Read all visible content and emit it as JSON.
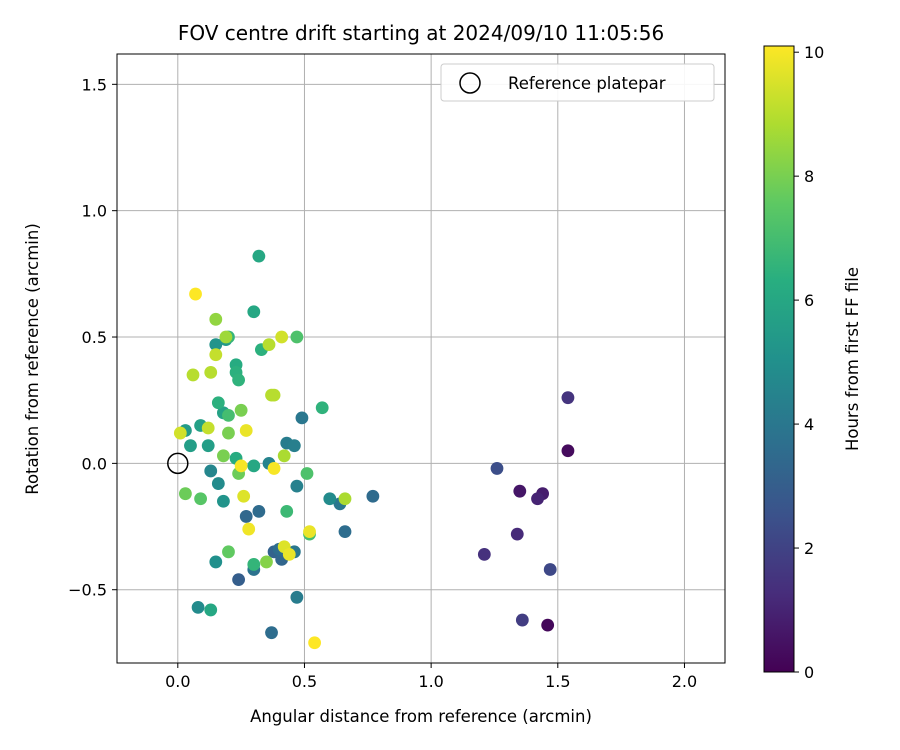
{
  "chart_data": {
    "type": "scatter",
    "title": "FOV centre drift starting at 2024/09/10 11:05:56",
    "xlabel": "Angular distance from reference (arcmin)",
    "ylabel": "Rotation from reference (arcmin)",
    "xlim": [
      -0.24,
      2.16
    ],
    "ylim": [
      -0.79,
      1.62
    ],
    "xticks": [
      0.0,
      0.5,
      1.0,
      1.5,
      2.0
    ],
    "xtick_labels": [
      "0.0",
      "0.5",
      "1.0",
      "1.5",
      "2.0"
    ],
    "yticks": [
      -0.5,
      0.0,
      0.5,
      1.0,
      1.5
    ],
    "ytick_labels": [
      "−0.5",
      "0.0",
      "0.5",
      "1.0",
      "1.5"
    ],
    "grid": true,
    "legend": {
      "position": "top-right",
      "entries": [
        "Reference platepar"
      ]
    },
    "reference_point": {
      "x": 0.0,
      "y": 0.0,
      "label": "Reference platepar"
    },
    "colorbar": {
      "label": "Hours from first FF file",
      "colormap": "viridis",
      "range": [
        0,
        10.1
      ],
      "ticks": [
        0,
        2,
        4,
        6,
        8,
        10
      ],
      "tick_labels": [
        "0",
        "2",
        "4",
        "6",
        "8",
        "10"
      ]
    },
    "points": [
      {
        "x": 1.46,
        "y": -0.64,
        "c": 0.2
      },
      {
        "x": 1.54,
        "y": 0.05,
        "c": 0.3
      },
      {
        "x": 1.35,
        "y": -0.11,
        "c": 0.6
      },
      {
        "x": 1.44,
        "y": -0.12,
        "c": 0.8
      },
      {
        "x": 1.42,
        "y": -0.14,
        "c": 1.0
      },
      {
        "x": 1.34,
        "y": -0.28,
        "c": 1.2
      },
      {
        "x": 1.21,
        "y": -0.36,
        "c": 1.4
      },
      {
        "x": 1.54,
        "y": 0.26,
        "c": 1.5
      },
      {
        "x": 1.36,
        "y": -0.62,
        "c": 1.8
      },
      {
        "x": 1.47,
        "y": -0.42,
        "c": 2.2
      },
      {
        "x": 1.26,
        "y": -0.02,
        "c": 2.4
      },
      {
        "x": 0.24,
        "y": -0.46,
        "c": 3.0
      },
      {
        "x": 0.27,
        "y": -0.21,
        "c": 3.4
      },
      {
        "x": 0.32,
        "y": -0.19,
        "c": 3.5
      },
      {
        "x": 0.37,
        "y": -0.67,
        "c": 3.6
      },
      {
        "x": 0.38,
        "y": -0.35,
        "c": 3.2
      },
      {
        "x": 0.41,
        "y": -0.38,
        "c": 3.3
      },
      {
        "x": 0.4,
        "y": -0.34,
        "c": 3.6
      },
      {
        "x": 0.3,
        "y": -0.42,
        "c": 3.8
      },
      {
        "x": 0.46,
        "y": -0.35,
        "c": 4.0
      },
      {
        "x": 0.47,
        "y": -0.53,
        "c": 4.2
      },
      {
        "x": 0.66,
        "y": -0.27,
        "c": 3.6
      },
      {
        "x": 0.77,
        "y": -0.13,
        "c": 3.5
      },
      {
        "x": 0.64,
        "y": -0.16,
        "c": 4.0
      },
      {
        "x": 0.49,
        "y": 0.18,
        "c": 4.0
      },
      {
        "x": 0.43,
        "y": 0.08,
        "c": 4.2
      },
      {
        "x": 0.46,
        "y": 0.07,
        "c": 4.3
      },
      {
        "x": 0.47,
        "y": -0.09,
        "c": 4.4
      },
      {
        "x": 0.36,
        "y": 0.0,
        "c": 4.5
      },
      {
        "x": 0.6,
        "y": -0.14,
        "c": 4.8
      },
      {
        "x": 0.08,
        "y": -0.57,
        "c": 4.8
      },
      {
        "x": 0.13,
        "y": -0.03,
        "c": 4.6
      },
      {
        "x": 0.16,
        "y": -0.08,
        "c": 4.8
      },
      {
        "x": 0.15,
        "y": -0.39,
        "c": 5.0
      },
      {
        "x": 0.18,
        "y": -0.15,
        "c": 5.2
      },
      {
        "x": 0.15,
        "y": 0.47,
        "c": 5.2
      },
      {
        "x": 0.19,
        "y": 0.49,
        "c": 5.4
      },
      {
        "x": 0.03,
        "y": 0.13,
        "c": 5.5
      },
      {
        "x": 0.05,
        "y": 0.07,
        "c": 5.6
      },
      {
        "x": 0.12,
        "y": 0.07,
        "c": 5.6
      },
      {
        "x": 0.09,
        "y": 0.15,
        "c": 5.7
      },
      {
        "x": 0.18,
        "y": 0.2,
        "c": 5.8
      },
      {
        "x": 0.13,
        "y": -0.58,
        "c": 6.0
      },
      {
        "x": 0.3,
        "y": 0.6,
        "c": 6.0
      },
      {
        "x": 0.32,
        "y": 0.82,
        "c": 6.0
      },
      {
        "x": 0.3,
        "y": -0.01,
        "c": 6.0
      },
      {
        "x": 0.23,
        "y": 0.39,
        "c": 6.2
      },
      {
        "x": 0.23,
        "y": 0.36,
        "c": 6.4
      },
      {
        "x": 0.24,
        "y": 0.33,
        "c": 6.5
      },
      {
        "x": 0.23,
        "y": 0.02,
        "c": 6.2
      },
      {
        "x": 0.16,
        "y": 0.24,
        "c": 6.4
      },
      {
        "x": 0.33,
        "y": 0.45,
        "c": 6.4
      },
      {
        "x": 0.3,
        "y": -0.4,
        "c": 6.6
      },
      {
        "x": 0.2,
        "y": 0.5,
        "c": 6.6
      },
      {
        "x": 0.57,
        "y": 0.22,
        "c": 6.5
      },
      {
        "x": 0.43,
        "y": -0.19,
        "c": 6.8
      },
      {
        "x": 0.52,
        "y": -0.28,
        "c": 7.0
      },
      {
        "x": 0.51,
        "y": -0.04,
        "c": 7.2
      },
      {
        "x": 0.47,
        "y": 0.5,
        "c": 7.2
      },
      {
        "x": 0.2,
        "y": 0.19,
        "c": 7.0
      },
      {
        "x": 0.09,
        "y": -0.14,
        "c": 7.4
      },
      {
        "x": 0.2,
        "y": -0.35,
        "c": 7.6
      },
      {
        "x": 0.24,
        "y": -0.04,
        "c": 7.8
      },
      {
        "x": 0.2,
        "y": 0.12,
        "c": 8.0
      },
      {
        "x": 0.03,
        "y": -0.12,
        "c": 7.8
      },
      {
        "x": 0.18,
        "y": 0.03,
        "c": 8.0
      },
      {
        "x": 0.25,
        "y": 0.21,
        "c": 8.0
      },
      {
        "x": 0.35,
        "y": -0.39,
        "c": 8.2
      },
      {
        "x": 0.15,
        "y": 0.57,
        "c": 8.4
      },
      {
        "x": 0.19,
        "y": 0.5,
        "c": 8.6
      },
      {
        "x": 0.66,
        "y": -0.14,
        "c": 8.8
      },
      {
        "x": 0.42,
        "y": 0.03,
        "c": 8.8
      },
      {
        "x": 0.37,
        "y": 0.27,
        "c": 9.0
      },
      {
        "x": 0.38,
        "y": 0.27,
        "c": 9.0
      },
      {
        "x": 0.36,
        "y": 0.47,
        "c": 9.0
      },
      {
        "x": 0.06,
        "y": 0.35,
        "c": 9.0
      },
      {
        "x": 0.13,
        "y": 0.36,
        "c": 9.0
      },
      {
        "x": 0.15,
        "y": 0.43,
        "c": 9.2
      },
      {
        "x": 0.12,
        "y": 0.14,
        "c": 9.2
      },
      {
        "x": 0.01,
        "y": 0.12,
        "c": 9.4
      },
      {
        "x": 0.41,
        "y": 0.5,
        "c": 9.4
      },
      {
        "x": 0.26,
        "y": -0.13,
        "c": 9.6
      },
      {
        "x": 0.42,
        "y": -0.33,
        "c": 9.6
      },
      {
        "x": 0.44,
        "y": -0.36,
        "c": 9.8
      },
      {
        "x": 0.52,
        "y": -0.27,
        "c": 9.8
      },
      {
        "x": 0.27,
        "y": 0.13,
        "c": 9.8
      },
      {
        "x": 0.28,
        "y": -0.26,
        "c": 9.9
      },
      {
        "x": 0.25,
        "y": -0.01,
        "c": 10.0
      },
      {
        "x": 0.38,
        "y": -0.02,
        "c": 10.0
      },
      {
        "x": 0.07,
        "y": 0.67,
        "c": 10.1
      },
      {
        "x": 0.54,
        "y": -0.71,
        "c": 10.1
      }
    ]
  }
}
